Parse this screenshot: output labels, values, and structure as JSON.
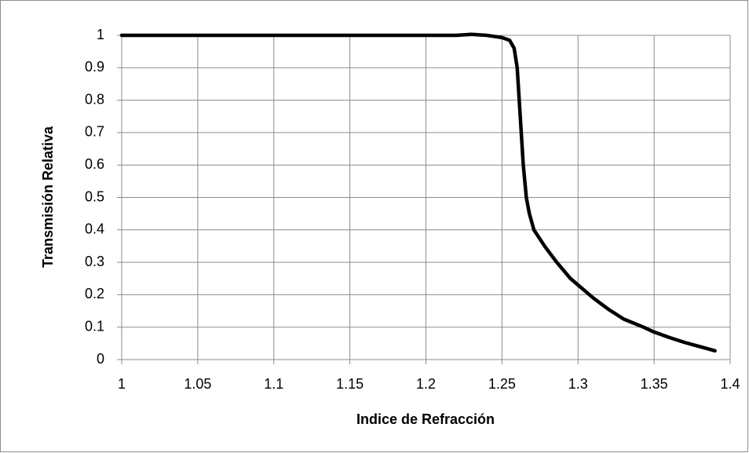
{
  "chart_data": {
    "type": "line",
    "x_label": "Indice de Refracción",
    "y_label": "Transmisión Relativa",
    "x": [
      1,
      1.2,
      1.22,
      1.23,
      1.24,
      1.25,
      1.255,
      1.258,
      1.26,
      1.262,
      1.264,
      1.266,
      1.268,
      1.271,
      1.278,
      1.286,
      1.295,
      1.3,
      1.31,
      1.32,
      1.33,
      1.343,
      1.35,
      1.36,
      1.37,
      1.38,
      1.39
    ],
    "series": [
      {
        "color": "#000000",
        "values": [
          1,
          1,
          1,
          1.003,
          1,
          0.993,
          0.985,
          0.96,
          0.9,
          0.75,
          0.6,
          0.5,
          0.45,
          0.4,
          0.35,
          0.3,
          0.25,
          0.23,
          0.19,
          0.155,
          0.125,
          0.1,
          0.085,
          0.068,
          0.053,
          0.04,
          0.027
        ]
      }
    ],
    "xlim": [
      1,
      1.4
    ],
    "xticks": [
      1,
      1.05,
      1.1,
      1.15,
      1.2,
      1.25,
      1.3,
      1.35,
      1.4
    ],
    "ylim": [
      0,
      1
    ],
    "yticks": [
      0,
      0.1,
      0.2,
      0.3,
      0.4,
      0.5,
      0.6,
      0.7,
      0.8,
      0.9,
      1
    ],
    "grid": true
  }
}
